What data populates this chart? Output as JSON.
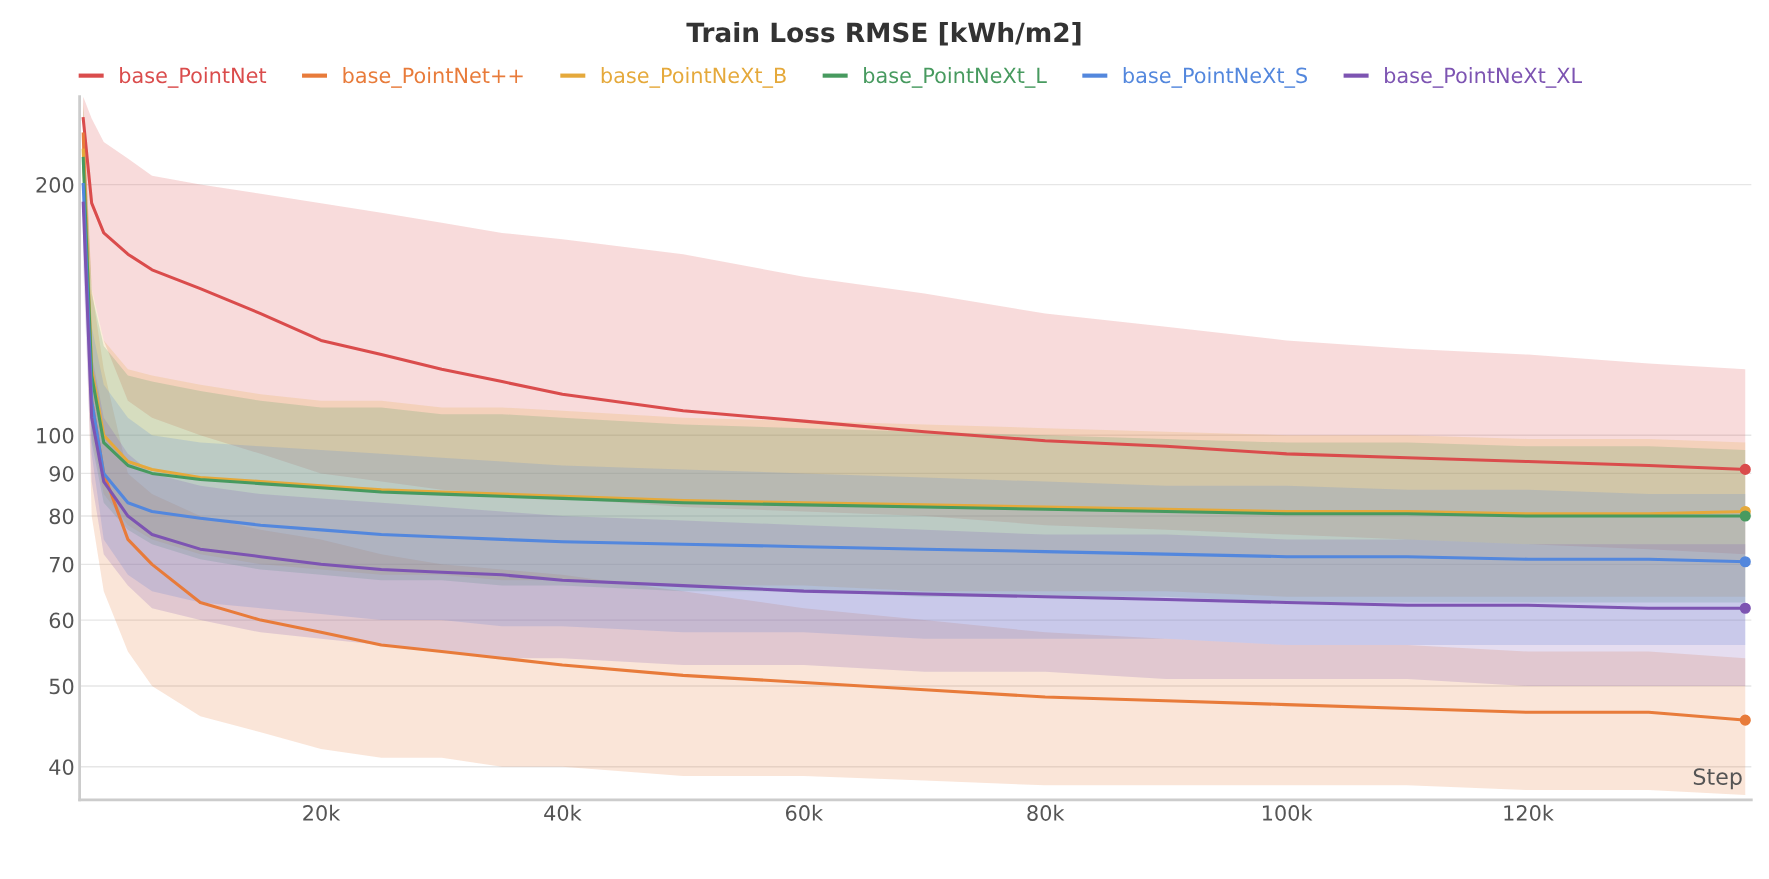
{
  "chart_data": {
    "type": "line",
    "title": "Train Loss RMSE [kWh/m2]",
    "xlabel": "Step",
    "x": [
      300,
      1000,
      2000,
      4000,
      6000,
      10000,
      15000,
      20000,
      25000,
      30000,
      35000,
      40000,
      50000,
      60000,
      70000,
      80000,
      90000,
      100000,
      110000,
      120000,
      130000,
      138000
    ],
    "log": "y",
    "grid": "y",
    "legend": "top",
    "line_style": "solid",
    "xlim": [
      0,
      138500
    ],
    "ylim": [
      36.5,
      255
    ],
    "xticks": [
      {
        "value": 20000,
        "label": "20k"
      },
      {
        "value": 40000,
        "label": "40k"
      },
      {
        "value": 60000,
        "label": "60k"
      },
      {
        "value": 80000,
        "label": "80k"
      },
      {
        "value": 100000,
        "label": "100k"
      },
      {
        "value": 120000,
        "label": "120k"
      }
    ],
    "yticks": [
      40,
      50,
      60,
      70,
      80,
      90,
      100,
      200
    ],
    "series": [
      {
        "name": "base_PointNet",
        "color": "#da4c4c",
        "values": [
          240,
          190,
          175,
          165,
          158,
          150,
          140,
          130,
          125,
          120,
          116,
          112,
          107,
          104,
          101,
          98.5,
          97,
          95,
          94,
          93,
          92,
          91
        ],
        "upper": [
          255,
          240,
          225,
          215,
          205,
          200,
          195,
          190,
          185,
          180,
          175,
          172,
          165,
          155,
          148,
          140,
          135,
          130,
          127,
          125,
          122,
          120
        ],
        "lower": [
          200,
          150,
          130,
          110,
          105,
          100,
          95,
          90,
          88,
          86,
          85,
          84,
          82,
          81,
          80,
          78,
          77,
          76,
          75,
          74,
          73,
          72
        ]
      },
      {
        "name": "base_PointNet++",
        "color": "#e87b3a",
        "values": [
          230,
          110,
          90,
          75,
          70,
          63,
          60,
          58,
          56,
          55,
          54,
          53,
          51.5,
          50.5,
          49.5,
          48.5,
          48,
          47.5,
          47,
          46.5,
          46.5,
          45.5
        ],
        "upper": [
          255,
          150,
          120,
          90,
          85,
          80,
          77,
          75,
          72,
          70,
          69,
          68,
          65,
          62,
          60,
          58,
          57,
          56,
          56,
          55,
          55,
          54
        ],
        "lower": [
          200,
          80,
          65,
          55,
          50,
          46,
          44,
          42,
          41,
          41,
          40,
          40,
          39,
          39,
          38.5,
          38,
          38,
          38,
          38,
          37.5,
          37.5,
          37
        ]
      },
      {
        "name": "base_PointNeXt_B",
        "color": "#e5a93b",
        "values": [
          220,
          120,
          100,
          93,
          91,
          89,
          88,
          87,
          86,
          85.5,
          85,
          84.5,
          83.5,
          83,
          82.5,
          82,
          81.5,
          81,
          81,
          80.5,
          80.5,
          81
        ],
        "upper": [
          250,
          150,
          130,
          120,
          118,
          115,
          112,
          110,
          110,
          108,
          108,
          107,
          105,
          104,
          103,
          102,
          101,
          100,
          100,
          99,
          99,
          98
        ],
        "lower": [
          190,
          100,
          85,
          78,
          75,
          72,
          70,
          69,
          68,
          68,
          67,
          67,
          66,
          66,
          65,
          65,
          65,
          64,
          64,
          64,
          64,
          64
        ]
      },
      {
        "name": "base_PointNeXt_L",
        "color": "#479a5f",
        "values": [
          215,
          118,
          98,
          92,
          90,
          88.5,
          87.5,
          86.5,
          85.5,
          85,
          84.5,
          84,
          83,
          82.5,
          82,
          81.5,
          81,
          80.5,
          80.5,
          80,
          80,
          80
        ],
        "upper": [
          248,
          148,
          128,
          118,
          116,
          113,
          110,
          108,
          108,
          106,
          106,
          105,
          103,
          102,
          101,
          100,
          99,
          98,
          98,
          97,
          97,
          96
        ],
        "lower": [
          188,
          98,
          83,
          77,
          74,
          71,
          69,
          68,
          67,
          67,
          66,
          66,
          65,
          65,
          64,
          64,
          64,
          63,
          63,
          63,
          63,
          63
        ]
      },
      {
        "name": "base_PointNeXt_S",
        "color": "#5387dd",
        "values": [
          200,
          110,
          90,
          83,
          81,
          79.5,
          78,
          77,
          76,
          75.5,
          75,
          74.5,
          74,
          73.5,
          73,
          72.5,
          72,
          71.5,
          71.5,
          71,
          71,
          70.5
        ],
        "upper": [
          240,
          135,
          115,
          105,
          100,
          98,
          97,
          96,
          95,
          94,
          93,
          92,
          91,
          90,
          89,
          88,
          87,
          87,
          86,
          86,
          85,
          85
        ],
        "lower": [
          170,
          95,
          75,
          68,
          65,
          63,
          62,
          61,
          60,
          60,
          59,
          59,
          58,
          58,
          57,
          57,
          57,
          56,
          56,
          56,
          56,
          56
        ]
      },
      {
        "name": "base_PointNeXt_XL",
        "color": "#7d54b2",
        "values": [
          190,
          105,
          88,
          80,
          76,
          73,
          71.5,
          70,
          69,
          68.5,
          68,
          67,
          66,
          65,
          64.5,
          64,
          63.5,
          63,
          62.5,
          62.5,
          62,
          62
        ],
        "upper": [
          230,
          125,
          105,
          95,
          90,
          87,
          85,
          84,
          83,
          82,
          81,
          80,
          79,
          78,
          77,
          76,
          76,
          75,
          75,
          74,
          74,
          74
        ],
        "lower": [
          160,
          88,
          72,
          66,
          62,
          60,
          58,
          57,
          56,
          55,
          54,
          54,
          53,
          53,
          52,
          52,
          51,
          51,
          51,
          50,
          50,
          50
        ]
      }
    ]
  }
}
